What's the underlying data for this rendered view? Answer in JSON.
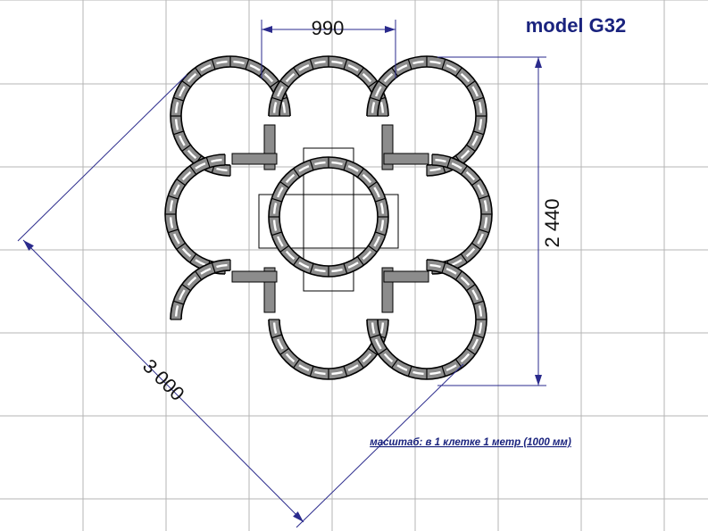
{
  "title": "model G32",
  "dimensions": {
    "top_width": "990",
    "height": "2 440",
    "diagonal": "3 000"
  },
  "scale_note": "масштаб: в 1 клетке 1 метр (1000 мм)",
  "colors": {
    "title": "#1a237e",
    "dimension_lines": "#2a2a8c",
    "grid": "#b4b4b4",
    "block_fill": "#8c8c8c"
  }
}
